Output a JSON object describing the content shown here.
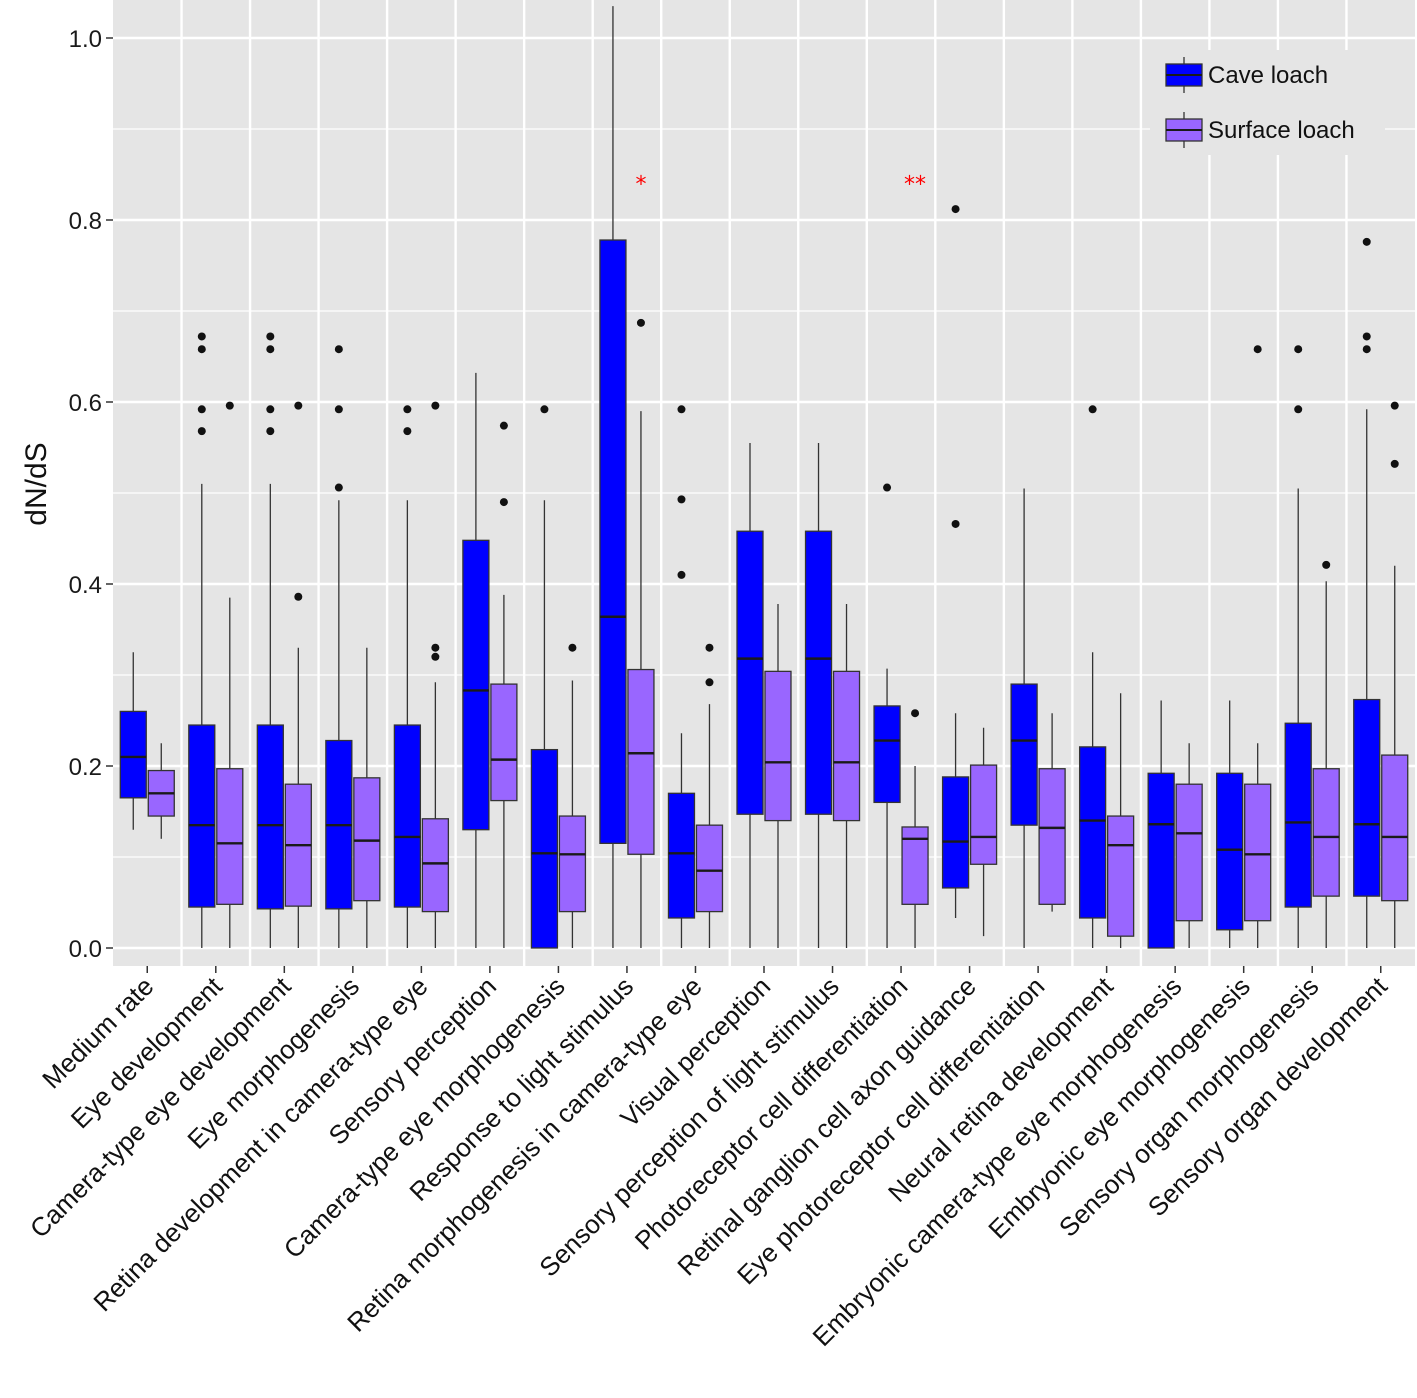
{
  "chart_data": {
    "type": "boxplot",
    "title": "",
    "xlabel": "",
    "ylabel": "dN/dS",
    "ylim": [
      -0.015,
      1.035
    ],
    "yticks": [
      0.0,
      0.2,
      0.4,
      0.6,
      0.8,
      1.0
    ],
    "ytick_labels": [
      "0.0",
      "0.2",
      "0.4",
      "0.6",
      "0.8",
      "1.0"
    ],
    "grid": true,
    "legend_position": "top-right",
    "colors": {
      "cave": "#0000ff",
      "surface": "#9966ff",
      "panel": "#e5e5e5",
      "grid": "#ffffff",
      "significance": "#ff0000"
    },
    "series": [
      {
        "name": "Cave loach",
        "key": "cave"
      },
      {
        "name": "Surface loach",
        "key": "surface"
      }
    ],
    "categories": [
      "Medium rate",
      "Eye development",
      "Camera-type eye development",
      "Eye morphogenesis",
      "Retina development in camera-type eye",
      "Sensory perception",
      "Camera-type eye morphogenesis",
      "Response to light stimulus",
      "Retina morphogenesis in camera-type eye",
      "Visual perception",
      "Sensory perception of light stimulus",
      "Photoreceptor cell differentiation",
      "Retinal ganglion cell axon guidance",
      "Eye photoreceptor cell differentiation",
      "Neural retina development",
      "Embryonic camera-type eye morphogenesis",
      "Embryonic eye morphogenesis",
      "Sensory organ morphogenesis",
      "Sensory organ development"
    ],
    "groups": [
      {
        "cave": {
          "lo": 0.13,
          "q1": 0.165,
          "med": 0.21,
          "q3": 0.26,
          "hi": 0.325,
          "out": []
        },
        "surface": {
          "lo": 0.12,
          "q1": 0.145,
          "med": 0.17,
          "q3": 0.195,
          "hi": 0.225,
          "out": []
        },
        "sig": ""
      },
      {
        "cave": {
          "lo": 0.0,
          "q1": 0.045,
          "med": 0.135,
          "q3": 0.245,
          "hi": 0.51,
          "out": [
            0.568,
            0.592,
            0.658,
            0.672
          ]
        },
        "surface": {
          "lo": 0.0,
          "q1": 0.048,
          "med": 0.115,
          "q3": 0.197,
          "hi": 0.385,
          "out": [
            0.596
          ]
        },
        "sig": ""
      },
      {
        "cave": {
          "lo": 0.0,
          "q1": 0.043,
          "med": 0.135,
          "q3": 0.245,
          "hi": 0.51,
          "out": [
            0.568,
            0.592,
            0.658,
            0.672
          ]
        },
        "surface": {
          "lo": 0.0,
          "q1": 0.046,
          "med": 0.113,
          "q3": 0.18,
          "hi": 0.33,
          "out": [
            0.386,
            0.596
          ]
        },
        "sig": ""
      },
      {
        "cave": {
          "lo": 0.0,
          "q1": 0.043,
          "med": 0.135,
          "q3": 0.228,
          "hi": 0.492,
          "out": [
            0.506,
            0.592,
            0.658
          ]
        },
        "surface": {
          "lo": 0.0,
          "q1": 0.052,
          "med": 0.118,
          "q3": 0.187,
          "hi": 0.33,
          "out": []
        },
        "sig": ""
      },
      {
        "cave": {
          "lo": 0.0,
          "q1": 0.045,
          "med": 0.122,
          "q3": 0.245,
          "hi": 0.492,
          "out": [
            0.568,
            0.592
          ]
        },
        "surface": {
          "lo": 0.0,
          "q1": 0.04,
          "med": 0.093,
          "q3": 0.142,
          "hi": 0.292,
          "out": [
            0.32,
            0.33,
            0.596
          ]
        },
        "sig": ""
      },
      {
        "cave": {
          "lo": 0.0,
          "q1": 0.13,
          "med": 0.283,
          "q3": 0.448,
          "hi": 0.632,
          "out": []
        },
        "surface": {
          "lo": 0.0,
          "q1": 0.162,
          "med": 0.207,
          "q3": 0.29,
          "hi": 0.388,
          "out": [
            0.49,
            0.574
          ]
        },
        "sig": ""
      },
      {
        "cave": {
          "lo": 0.0,
          "q1": 0.0,
          "med": 0.104,
          "q3": 0.218,
          "hi": 0.492,
          "out": [
            0.592
          ]
        },
        "surface": {
          "lo": 0.0,
          "q1": 0.04,
          "med": 0.103,
          "q3": 0.145,
          "hi": 0.294,
          "out": [
            0.33
          ]
        },
        "sig": ""
      },
      {
        "cave": {
          "lo": 0.0,
          "q1": 0.115,
          "med": 0.364,
          "q3": 0.778,
          "hi": 1.035,
          "out": []
        },
        "surface": {
          "lo": 0.0,
          "q1": 0.103,
          "med": 0.214,
          "q3": 0.306,
          "hi": 0.59,
          "out": [
            0.687
          ]
        },
        "sig": "*"
      },
      {
        "cave": {
          "lo": 0.0,
          "q1": 0.033,
          "med": 0.104,
          "q3": 0.17,
          "hi": 0.236,
          "out": [
            0.41,
            0.493,
            0.592
          ]
        },
        "surface": {
          "lo": 0.0,
          "q1": 0.04,
          "med": 0.085,
          "q3": 0.135,
          "hi": 0.268,
          "out": [
            0.292,
            0.33
          ]
        },
        "sig": ""
      },
      {
        "cave": {
          "lo": 0.0,
          "q1": 0.147,
          "med": 0.318,
          "q3": 0.458,
          "hi": 0.555,
          "out": []
        },
        "surface": {
          "lo": 0.0,
          "q1": 0.14,
          "med": 0.204,
          "q3": 0.304,
          "hi": 0.378,
          "out": []
        },
        "sig": ""
      },
      {
        "cave": {
          "lo": 0.0,
          "q1": 0.147,
          "med": 0.318,
          "q3": 0.458,
          "hi": 0.555,
          "out": []
        },
        "surface": {
          "lo": 0.0,
          "q1": 0.14,
          "med": 0.204,
          "q3": 0.304,
          "hi": 0.378,
          "out": []
        },
        "sig": ""
      },
      {
        "cave": {
          "lo": 0.0,
          "q1": 0.16,
          "med": 0.228,
          "q3": 0.266,
          "hi": 0.307,
          "out": [
            0.506
          ]
        },
        "surface": {
          "lo": 0.0,
          "q1": 0.048,
          "med": 0.12,
          "q3": 0.133,
          "hi": 0.2,
          "out": [
            0.258
          ]
        },
        "sig": "**"
      },
      {
        "cave": {
          "lo": 0.033,
          "q1": 0.066,
          "med": 0.117,
          "q3": 0.188,
          "hi": 0.258,
          "out": [
            0.466,
            0.812
          ]
        },
        "surface": {
          "lo": 0.013,
          "q1": 0.092,
          "med": 0.122,
          "q3": 0.201,
          "hi": 0.242,
          "out": []
        },
        "sig": ""
      },
      {
        "cave": {
          "lo": 0.0,
          "q1": 0.135,
          "med": 0.228,
          "q3": 0.29,
          "hi": 0.505,
          "out": []
        },
        "surface": {
          "lo": 0.04,
          "q1": 0.048,
          "med": 0.132,
          "q3": 0.197,
          "hi": 0.258,
          "out": []
        },
        "sig": ""
      },
      {
        "cave": {
          "lo": 0.0,
          "q1": 0.033,
          "med": 0.14,
          "q3": 0.221,
          "hi": 0.325,
          "out": [
            0.592
          ]
        },
        "surface": {
          "lo": 0.0,
          "q1": 0.013,
          "med": 0.113,
          "q3": 0.145,
          "hi": 0.28,
          "out": []
        },
        "sig": ""
      },
      {
        "cave": {
          "lo": 0.0,
          "q1": 0.0,
          "med": 0.136,
          "q3": 0.192,
          "hi": 0.272,
          "out": []
        },
        "surface": {
          "lo": 0.0,
          "q1": 0.03,
          "med": 0.126,
          "q3": 0.18,
          "hi": 0.225,
          "out": []
        },
        "sig": ""
      },
      {
        "cave": {
          "lo": 0.0,
          "q1": 0.02,
          "med": 0.108,
          "q3": 0.192,
          "hi": 0.272,
          "out": []
        },
        "surface": {
          "lo": 0.0,
          "q1": 0.03,
          "med": 0.103,
          "q3": 0.18,
          "hi": 0.225,
          "out": [
            0.658
          ]
        },
        "sig": ""
      },
      {
        "cave": {
          "lo": 0.0,
          "q1": 0.045,
          "med": 0.138,
          "q3": 0.247,
          "hi": 0.505,
          "out": [
            0.592,
            0.658
          ]
        },
        "surface": {
          "lo": 0.0,
          "q1": 0.057,
          "med": 0.122,
          "q3": 0.197,
          "hi": 0.403,
          "out": [
            0.421
          ]
        },
        "sig": ""
      },
      {
        "cave": {
          "lo": 0.0,
          "q1": 0.057,
          "med": 0.136,
          "q3": 0.273,
          "hi": 0.592,
          "out": [
            0.658,
            0.672,
            0.776
          ]
        },
        "surface": {
          "lo": 0.0,
          "q1": 0.052,
          "med": 0.122,
          "q3": 0.212,
          "hi": 0.42,
          "out": [
            0.532,
            0.596
          ]
        },
        "sig": ""
      }
    ]
  }
}
